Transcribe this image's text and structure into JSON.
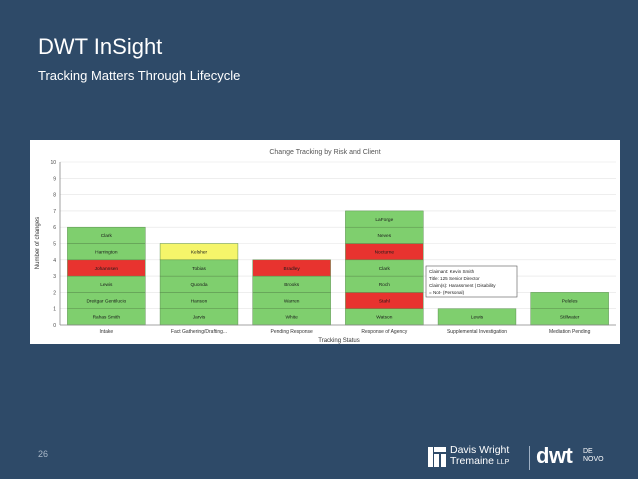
{
  "slide": {
    "title": "DWT InSight",
    "subtitle": "Tracking Matters Through Lifecycle",
    "page_number": "26"
  },
  "logo": {
    "firm_line1": "Davis Wright",
    "firm_line2": "Tremaine",
    "firm_suffix": "LLP",
    "brand": "dwt",
    "brand_sub1": "DE",
    "brand_sub2": "NOVO"
  },
  "colors": {
    "background": "#2e4a68",
    "green": "#7fcf6e",
    "yellow": "#f5f56a",
    "red": "#e8332f"
  },
  "chart_data": {
    "type": "bar",
    "stacked": true,
    "title": "Change Tracking by Risk and Client",
    "xlabel": "Tracking Status",
    "ylabel": "Number of changes",
    "ylim": [
      0,
      10
    ],
    "yticks": [
      0,
      1,
      2,
      3,
      4,
      5,
      6,
      7,
      8,
      9,
      10
    ],
    "grid": true,
    "categories": [
      "Intake",
      "Fact Gathering/Drafting...",
      "Pending Response",
      "Response of Agency",
      "Supplemental Investigation",
      "Mediation Pending"
    ],
    "stacks": [
      [
        {
          "label": "Rahas Smith",
          "value": 1,
          "risk": "green"
        },
        {
          "label": "Dreitgar Gentilucio",
          "value": 1,
          "risk": "green"
        },
        {
          "label": "Lewis",
          "value": 1,
          "risk": "green"
        },
        {
          "label": "Johannsen",
          "value": 1,
          "risk": "red"
        },
        {
          "label": "Harrington",
          "value": 1,
          "risk": "green"
        },
        {
          "label": "Clark",
          "value": 1,
          "risk": "green"
        }
      ],
      [
        {
          "label": "Jarvis",
          "value": 1,
          "risk": "green"
        },
        {
          "label": "Hanson",
          "value": 1,
          "risk": "green"
        },
        {
          "label": "Quonda",
          "value": 1,
          "risk": "green"
        },
        {
          "label": "Tobias",
          "value": 1,
          "risk": "green"
        },
        {
          "label": "Kelsher",
          "value": 1,
          "risk": "yellow"
        }
      ],
      [
        {
          "label": "White",
          "value": 1,
          "risk": "green"
        },
        {
          "label": "Warren",
          "value": 1,
          "risk": "green"
        },
        {
          "label": "Brooks",
          "value": 1,
          "risk": "green"
        },
        {
          "label": "Bradley",
          "value": 1,
          "risk": "red"
        }
      ],
      [
        {
          "label": "Watson",
          "value": 1,
          "risk": "green"
        },
        {
          "label": "Stahl",
          "value": 1,
          "risk": "red"
        },
        {
          "label": "Roch",
          "value": 1,
          "risk": "green"
        },
        {
          "label": "Clark",
          "value": 1,
          "risk": "green"
        },
        {
          "label": "Nocturne",
          "value": 1,
          "risk": "red"
        },
        {
          "label": "Neves",
          "value": 1,
          "risk": "green"
        },
        {
          "label": "LaForge",
          "value": 1,
          "risk": "green"
        }
      ],
      [
        {
          "label": "Lewis",
          "value": 1,
          "risk": "green"
        }
      ],
      [
        {
          "label": "Stillwater",
          "value": 1,
          "risk": "green"
        },
        {
          "label": "Peleles",
          "value": 1,
          "risk": "green"
        }
      ]
    ],
    "tooltip": {
      "lines": [
        "Claimant: Kevin Smith",
        "Title: 125 Senior Director",
        "Claim(s): Harassment | Disability",
        "= Not- (Personal)"
      ]
    }
  }
}
